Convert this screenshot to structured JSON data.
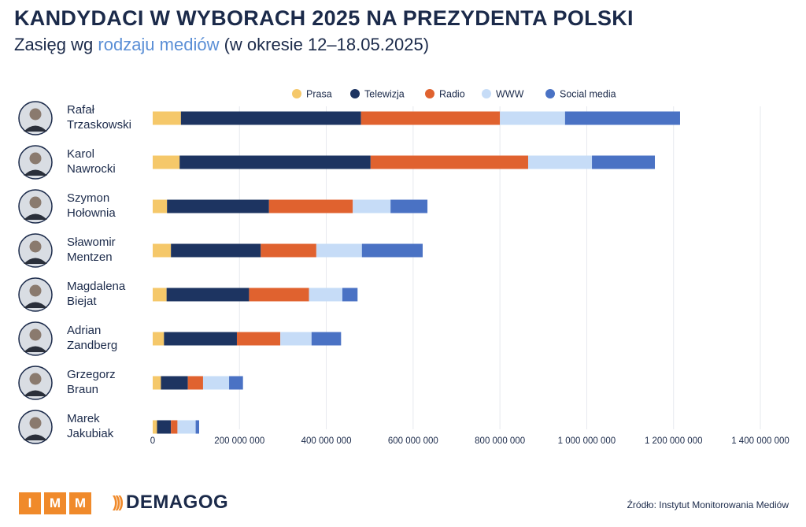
{
  "header": {
    "title": "KANDYDACI W WYBORACH 2025 NA PREZYDENTA POLSKI",
    "subtitle_start": "Zasięg wg ",
    "subtitle_accent": "rodzaju mediów",
    "subtitle_end": " (w okresie 12–18.05.2025)"
  },
  "colors": {
    "Prasa": "#f5c86a",
    "Telewizja": "#1d3461",
    "Radio": "#e0622f",
    "WWW": "#c6dcf7",
    "Social media": "#4a72c4",
    "grid": "#e6e9ee"
  },
  "chart_data": {
    "type": "bar",
    "orientation": "horizontal",
    "stacked": true,
    "categories": [
      "Rafał Trzaskowski",
      "Karol Nawrocki",
      "Szymon Hołownia",
      "Sławomir Mentzen",
      "Magdalena Biejat",
      "Adrian Zandberg",
      "Grzegorz Braun",
      "Marek Jakubiak"
    ],
    "name_lines": [
      [
        "Rafał",
        "Trzaskowski"
      ],
      [
        "Karol",
        "Nawrocki"
      ],
      [
        "Szymon",
        "Hołownia"
      ],
      [
        "Sławomir",
        "Mentzen"
      ],
      [
        "Magdalena",
        "Biejat"
      ],
      [
        "Adrian",
        "Zandberg"
      ],
      [
        "Grzegorz",
        "Braun"
      ],
      [
        "Marek",
        "Jakubiak"
      ]
    ],
    "series": [
      {
        "name": "Prasa",
        "values": [
          65000000,
          62000000,
          33000000,
          42000000,
          32000000,
          26000000,
          19000000,
          10000000
        ]
      },
      {
        "name": "Telewizja",
        "values": [
          415000000,
          440000000,
          235000000,
          207000000,
          190000000,
          168000000,
          62000000,
          32000000
        ]
      },
      {
        "name": "Radio",
        "values": [
          320000000,
          363000000,
          193000000,
          128000000,
          138000000,
          100000000,
          35000000,
          15000000
        ]
      },
      {
        "name": "WWW",
        "values": [
          150000000,
          147000000,
          87000000,
          105000000,
          77000000,
          72000000,
          60000000,
          42000000
        ]
      },
      {
        "name": "Social media",
        "values": [
          265000000,
          145000000,
          85000000,
          140000000,
          35000000,
          68000000,
          32000000,
          8000000
        ]
      }
    ],
    "xlim": [
      0,
      1400000000
    ],
    "xticks": [
      0,
      200000000,
      400000000,
      600000000,
      800000000,
      1000000000,
      1200000000,
      1400000000
    ],
    "xtick_labels": [
      "0",
      "200 000 000",
      "400 000 000",
      "600 000 000",
      "800 000 000",
      "1 000 000 000",
      "1 200 000 000",
      "1 400 000 000"
    ],
    "grid": true,
    "legend_position": "top"
  },
  "footer": {
    "imm_letters": [
      "I",
      "M",
      "M"
    ],
    "demagog": "DEMAGOG",
    "source": "Źródło: Instytut Monitorowania Mediów"
  }
}
